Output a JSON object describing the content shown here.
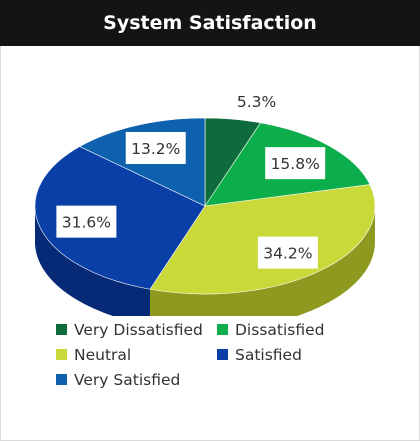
{
  "header": {
    "title": "System Satisfaction"
  },
  "chart_data": {
    "type": "pie",
    "title": "System Satisfaction",
    "three_d": true,
    "series": [
      {
        "name": "Very Dissatisfied",
        "value": 5.3,
        "label": "5.3%",
        "color": "#0e6b3c",
        "side": "#0a4a2a"
      },
      {
        "name": "Dissatisfied",
        "value": 15.8,
        "label": "15.8%",
        "color": "#0cad4b",
        "side": "#078037"
      },
      {
        "name": "Neutral",
        "value": 34.2,
        "label": "34.2%",
        "color": "#c9d93a",
        "side": "#8d9a1f"
      },
      {
        "name": "Satisfied",
        "value": 31.6,
        "label": "31.6%",
        "color": "#0a3fa8",
        "side": "#062a75"
      },
      {
        "name": "Very Satisfied",
        "value": 13.2,
        "label": "13.2%",
        "color": "#0e62ad",
        "side": "#094681"
      }
    ],
    "legend_position": "bottom"
  }
}
